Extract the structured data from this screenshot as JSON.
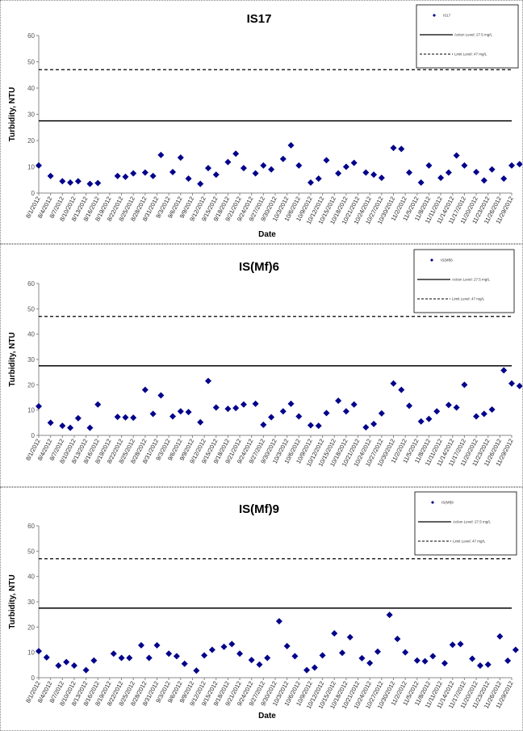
{
  "x_dates": [
    "8/1/2012",
    "8/4/2012",
    "8/7/2012",
    "8/10/2012",
    "8/13/2012",
    "8/16/2012",
    "8/19/2012",
    "8/22/2012",
    "8/25/2012",
    "8/28/2012",
    "8/31/2012",
    "9/3/2012",
    "9/6/2012",
    "9/9/2012",
    "9/12/2012",
    "9/15/2012",
    "9/18/2012",
    "9/21/2012",
    "9/24/2012",
    "9/27/2012",
    "9/30/2012",
    "10/3/2012",
    "10/6/2012",
    "10/9/2012",
    "10/12/2012",
    "10/15/2012",
    "10/18/2012",
    "10/21/2012",
    "10/24/2012",
    "10/27/2012",
    "10/30/2012",
    "11/2/2012",
    "11/5/2012",
    "11/8/2012",
    "11/11/2012",
    "11/14/2012",
    "11/17/2012",
    "11/20/2012",
    "11/23/2012",
    "11/26/2012",
    "11/29/2012"
  ],
  "colors": {
    "marker": "#00008B",
    "line": "#000000",
    "axis": "#888888"
  },
  "chart_data": [
    {
      "type": "scatter",
      "title": "IS17",
      "xlabel": "Date",
      "ylabel": "Turbidity, NTU",
      "ylim": [
        0,
        60
      ],
      "yticks": [
        0,
        10,
        20,
        30,
        40,
        50,
        60
      ],
      "action_level": 27.5,
      "limit_level": 47,
      "legend": {
        "placement": "top-right",
        "series_label": "IS17",
        "action_label": "Action Level: 27.5 mg/L",
        "limit_label": "Limit Level: 47 mg/L"
      },
      "points": [
        [
          "8/1/2012",
          10.5
        ],
        [
          "8/4/2012",
          6.5
        ],
        [
          "8/7/2012",
          4.5
        ],
        [
          "8/9/2012",
          4
        ],
        [
          "8/11/2012",
          4.5
        ],
        [
          "8/14/2012",
          3.5
        ],
        [
          "8/16/2012",
          3.8
        ],
        [
          "8/21/2012",
          6.5
        ],
        [
          "8/23/2012",
          6.2
        ],
        [
          "8/25/2012",
          7.5
        ],
        [
          "8/28/2012",
          7.8
        ],
        [
          "8/30/2012",
          6.5
        ],
        [
          "9/1/2012",
          14.5
        ],
        [
          "9/4/2012",
          8
        ],
        [
          "9/6/2012",
          13.5
        ],
        [
          "9/8/2012",
          5.5
        ],
        [
          "9/11/2012",
          3.5
        ],
        [
          "9/13/2012",
          9.5
        ],
        [
          "9/15/2012",
          7
        ],
        [
          "9/18/2012",
          11.8
        ],
        [
          "9/20/2012",
          15
        ],
        [
          "9/22/2012",
          9.5
        ],
        [
          "9/25/2012",
          7.5
        ],
        [
          "9/27/2012",
          10.5
        ],
        [
          "9/29/2012",
          9
        ],
        [
          "10/2/2012",
          13
        ],
        [
          "10/4/2012",
          18.2
        ],
        [
          "10/6/2012",
          10.5
        ],
        [
          "10/9/2012",
          4
        ],
        [
          "10/11/2012",
          5.5
        ],
        [
          "10/13/2012",
          12.5
        ],
        [
          "10/16/2012",
          7.5
        ],
        [
          "10/18/2012",
          10
        ],
        [
          "10/20/2012",
          11.5
        ],
        [
          "10/23/2012",
          7.8
        ],
        [
          "10/25/2012",
          7
        ],
        [
          "10/27/2012",
          5.8
        ],
        [
          "10/30/2012",
          17.2
        ],
        [
          "11/1/2012",
          16.8
        ],
        [
          "11/3/2012",
          7.8
        ],
        [
          "11/6/2012",
          4
        ],
        [
          "11/8/2012",
          10.5
        ],
        [
          "11/11/2012",
          5.8
        ],
        [
          "11/13/2012",
          7.8
        ],
        [
          "11/15/2012",
          14.3
        ],
        [
          "11/17/2012",
          10.5
        ],
        [
          "11/20/2012",
          8
        ],
        [
          "11/22/2012",
          4.8
        ],
        [
          "11/24/2012",
          9
        ],
        [
          "11/27/2012",
          5.5
        ],
        [
          "11/29/2012",
          10.5
        ],
        [
          "12/1/2012",
          11
        ]
      ]
    },
    {
      "type": "scatter",
      "title": "IS(Mf)6",
      "xlabel": "",
      "ylabel": "Turbidity, NTU",
      "ylim": [
        0,
        60
      ],
      "yticks": [
        0,
        10,
        20,
        30,
        40,
        50,
        60
      ],
      "action_level": 27.5,
      "limit_level": 47,
      "legend": {
        "placement": "top-right",
        "series_label": "IS(Mf)6",
        "action_label": "Action Level: 27.5 mg/L",
        "limit_label": "Limit Level: 47 mg/L"
      },
      "points": [
        [
          "8/1/2012",
          11.5
        ],
        [
          "8/4/2012",
          5
        ],
        [
          "8/7/2012",
          3.8
        ],
        [
          "8/9/2012",
          3
        ],
        [
          "8/11/2012",
          6.8
        ],
        [
          "8/14/2012",
          3
        ],
        [
          "8/16/2012",
          12.2
        ],
        [
          "8/21/2012",
          7.3
        ],
        [
          "8/23/2012",
          7.1
        ],
        [
          "8/25/2012",
          7
        ],
        [
          "8/28/2012",
          18
        ],
        [
          "8/30/2012",
          8.5
        ],
        [
          "9/1/2012",
          15.8
        ],
        [
          "9/4/2012",
          7.5
        ],
        [
          "9/6/2012",
          9.5
        ],
        [
          "9/8/2012",
          9.2
        ],
        [
          "9/11/2012",
          5.2
        ],
        [
          "9/13/2012",
          21.5
        ],
        [
          "9/15/2012",
          11
        ],
        [
          "9/18/2012",
          10.5
        ],
        [
          "9/20/2012",
          10.8
        ],
        [
          "9/22/2012",
          12.2
        ],
        [
          "9/25/2012",
          12.5
        ],
        [
          "9/27/2012",
          4.2
        ],
        [
          "9/29/2012",
          7.2
        ],
        [
          "10/2/2012",
          9.5
        ],
        [
          "10/4/2012",
          12.5
        ],
        [
          "10/6/2012",
          7.5
        ],
        [
          "10/9/2012",
          4
        ],
        [
          "10/11/2012",
          3.8
        ],
        [
          "10/13/2012",
          8.8
        ],
        [
          "10/16/2012",
          13.7
        ],
        [
          "10/18/2012",
          9.5
        ],
        [
          "10/20/2012",
          12.2
        ],
        [
          "10/23/2012",
          3.2
        ],
        [
          "10/25/2012",
          4.5
        ],
        [
          "10/27/2012",
          8.7
        ],
        [
          "10/30/2012",
          20.5
        ],
        [
          "11/1/2012",
          18
        ],
        [
          "11/3/2012",
          11.7
        ],
        [
          "11/6/2012",
          5.5
        ],
        [
          "11/8/2012",
          6.5
        ],
        [
          "11/10/2012",
          9.5
        ],
        [
          "11/13/2012",
          12
        ],
        [
          "11/15/2012",
          11
        ],
        [
          "11/17/2012",
          20
        ],
        [
          "11/20/2012",
          7.5
        ],
        [
          "11/22/2012",
          8.5
        ],
        [
          "11/24/2012",
          10.2
        ],
        [
          "11/27/2012",
          25.7
        ],
        [
          "11/29/2012",
          20.5
        ],
        [
          "12/1/2012",
          19.5
        ]
      ]
    },
    {
      "type": "scatter",
      "title": "IS(Mf)9",
      "xlabel": "Date",
      "ylabel": "Turbidity, NTU",
      "ylim": [
        0,
        60
      ],
      "yticks": [
        0,
        10,
        20,
        30,
        40,
        50,
        60
      ],
      "action_level": 27.5,
      "limit_level": 47,
      "legend": {
        "placement": "top-right",
        "series_label": "IS(Mf)9",
        "action_label": "Action Level: 27.5 mg/L",
        "limit_label": "Limit Level: 47 mg/L"
      },
      "points": [
        [
          "8/1/2012",
          10.5
        ],
        [
          "8/3/2012",
          8
        ],
        [
          "8/6/2012",
          4.8
        ],
        [
          "8/8/2012",
          6.2
        ],
        [
          "8/10/2012",
          4.8
        ],
        [
          "8/13/2012",
          3
        ],
        [
          "8/15/2012",
          6.8
        ],
        [
          "8/20/2012",
          9.5
        ],
        [
          "8/22/2012",
          7.8
        ],
        [
          "8/24/2012",
          7.8
        ],
        [
          "8/27/2012",
          12.8
        ],
        [
          "8/29/2012",
          7.8
        ],
        [
          "8/31/2012",
          12.8
        ],
        [
          "9/3/2012",
          9.5
        ],
        [
          "9/5/2012",
          8.5
        ],
        [
          "9/7/2012",
          5.5
        ],
        [
          "9/10/2012",
          2.8
        ],
        [
          "9/12/2012",
          8.8
        ],
        [
          "9/14/2012",
          11
        ],
        [
          "9/17/2012",
          12.2
        ],
        [
          "9/19/2012",
          13.3
        ],
        [
          "9/21/2012",
          9.5
        ],
        [
          "9/24/2012",
          7
        ],
        [
          "9/26/2012",
          5.2
        ],
        [
          "9/28/2012",
          7.8
        ],
        [
          "10/1/2012",
          22.3
        ],
        [
          "10/3/2012",
          12.5
        ],
        [
          "10/5/2012",
          8.5
        ],
        [
          "10/8/2012",
          3
        ],
        [
          "10/10/2012",
          4
        ],
        [
          "10/12/2012",
          8.8
        ],
        [
          "10/15/2012",
          17.5
        ],
        [
          "10/17/2012",
          9.8
        ],
        [
          "10/19/2012",
          16
        ],
        [
          "10/22/2012",
          7.7
        ],
        [
          "10/24/2012",
          5.8
        ],
        [
          "10/26/2012",
          10.3
        ],
        [
          "10/29/2012",
          24.8
        ],
        [
          "10/31/2012",
          15.3
        ],
        [
          "11/2/2012",
          10
        ],
        [
          "11/5/2012",
          6.8
        ],
        [
          "11/7/2012",
          6.5
        ],
        [
          "11/9/2012",
          8.5
        ],
        [
          "11/12/2012",
          5.7
        ],
        [
          "11/14/2012",
          13
        ],
        [
          "11/16/2012",
          13.3
        ],
        [
          "11/19/2012",
          7.5
        ],
        [
          "11/21/2012",
          4.8
        ],
        [
          "11/23/2012",
          5.2
        ],
        [
          "11/26/2012",
          16.3
        ],
        [
          "11/28/2012",
          6.7
        ],
        [
          "11/30/2012",
          11
        ]
      ]
    }
  ]
}
